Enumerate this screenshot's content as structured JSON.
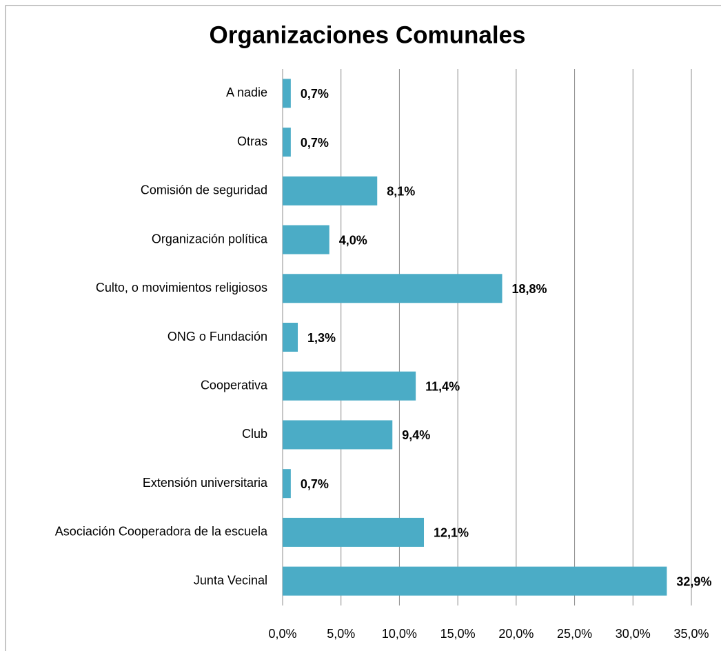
{
  "chart_data": {
    "type": "bar",
    "orientation": "horizontal",
    "title": "Organizaciones Comunales",
    "categories": [
      "A nadie",
      "Otras",
      "Comisión de seguridad",
      "Organización política",
      "Culto, o movimientos religiosos",
      "ONG o Fundación",
      "Cooperativa",
      "Club",
      "Extensión universitaria",
      "Asociación Cooperadora de la escuela",
      "Junta Vecinal"
    ],
    "values": [
      0.7,
      0.7,
      8.1,
      4.0,
      18.8,
      1.3,
      11.4,
      9.4,
      0.7,
      12.1,
      32.9
    ],
    "value_labels": [
      "0,7%",
      "0,7%",
      "8,1%",
      "4,0%",
      "18,8%",
      "1,3%",
      "11,4%",
      "9,4%",
      "0,7%",
      "12,1%",
      "32,9%"
    ],
    "color": "#4bacc6",
    "xlim": [
      0,
      35
    ],
    "xticks": [
      {
        "value": 0,
        "label": "0,0%"
      },
      {
        "value": 5,
        "label": "5,0%"
      },
      {
        "value": 10,
        "label": "10,0%"
      },
      {
        "value": 15,
        "label": "15,0%"
      },
      {
        "value": 20,
        "label": "20,0%"
      },
      {
        "value": 25,
        "label": "25,0%"
      },
      {
        "value": 30,
        "label": "30,0%"
      },
      {
        "value": 35,
        "label": "35,0%"
      }
    ],
    "grid": true
  }
}
